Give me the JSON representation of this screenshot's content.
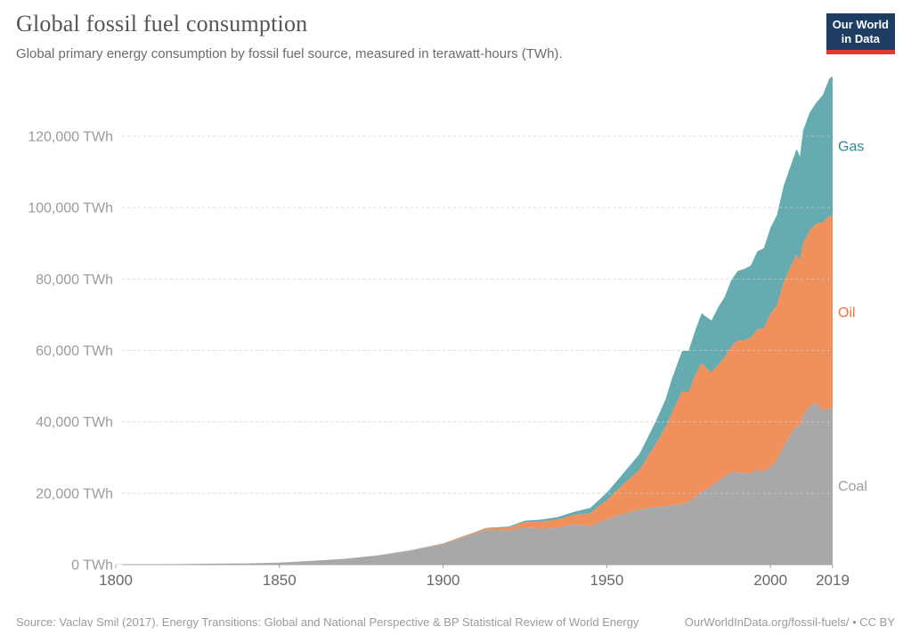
{
  "header": {
    "title": "Global fossil fuel consumption",
    "subtitle": "Global primary energy consumption by fossil fuel source, measured in terawatt-hours (TWh).",
    "logo": {
      "line1": "Our World",
      "line2": "in Data",
      "bg_color": "#1d3d63",
      "accent_color": "#dc3c32"
    }
  },
  "chart_data": {
    "type": "area",
    "stacked": true,
    "title": "Global fossil fuel consumption",
    "unit": "TWh",
    "xlim": [
      1800,
      2019
    ],
    "ylim": [
      0,
      140000
    ],
    "grid": "horizontal dashed",
    "legend_position": "right edge, inline labels",
    "x": [
      1800,
      1810,
      1820,
      1830,
      1840,
      1850,
      1860,
      1870,
      1880,
      1890,
      1900,
      1910,
      1913,
      1920,
      1925,
      1930,
      1935,
      1940,
      1945,
      1950,
      1955,
      1960,
      1965,
      1968,
      1970,
      1973,
      1975,
      1977,
      1979,
      1980,
      1982,
      1984,
      1986,
      1988,
      1990,
      1992,
      1994,
      1996,
      1998,
      2000,
      2002,
      2004,
      2006,
      2008,
      2009,
      2010,
      2012,
      2014,
      2016,
      2018,
      2019
    ],
    "series": [
      {
        "name": "Coal",
        "fill": "#a8a8a8",
        "label_color": "#9c9c9c",
        "values": [
          97,
          128,
          153,
          264,
          356,
          569,
          1061,
          1642,
          2542,
          3856,
          5728,
          8656,
          9680,
          9528,
          10500,
          10089,
          10413,
          11261,
          10800,
          12603,
          14300,
          15442,
          16140,
          16329,
          16618,
          16991,
          17560,
          18830,
          20416,
          20858,
          21928,
          23459,
          24565,
          26034,
          25905,
          25637,
          25553,
          26573,
          26020,
          27427,
          29204,
          33134,
          36070,
          39027,
          38751,
          41935,
          44341,
          45335,
          43101,
          43869,
          43849
        ]
      },
      {
        "name": "Oil",
        "fill": "#f0905c",
        "label_color": "#ee7434",
        "values": [
          0,
          0,
          0,
          0,
          0,
          2,
          6,
          11,
          33,
          89,
          181,
          397,
          470,
          889,
          1400,
          1935,
          2200,
          2653,
          3700,
          5444,
          8151,
          11096,
          17729,
          22180,
          26123,
          31500,
          30753,
          34162,
          36119,
          34553,
          31890,
          32428,
          33476,
          35054,
          36877,
          37258,
          37973,
          39284,
          40276,
          42880,
          43409,
          45908,
          47022,
          47764,
          46586,
          48118,
          49243,
          50181,
          52724,
          53878,
          53619
        ]
      },
      {
        "name": "Gas",
        "fill": "#65abb0",
        "label_color": "#2e8a8f",
        "values": [
          0,
          0,
          0,
          0,
          0,
          0,
          0,
          0,
          28,
          72,
          64,
          142,
          165,
          233,
          430,
          603,
          700,
          875,
          1400,
          2092,
          3070,
          4472,
          6304,
          7876,
          9614,
          11323,
          11613,
          12510,
          13924,
          14243,
          14573,
          16114,
          16935,
          18557,
          19484,
          19928,
          20286,
          21878,
          22361,
          24029,
          25379,
          26918,
          28158,
          29689,
          28921,
          31598,
          33085,
          33925,
          35741,
          38451,
          39292
        ]
      }
    ],
    "yticks": [
      {
        "value": 0,
        "label": "0 TWh"
      },
      {
        "value": 20000,
        "label": "20,000 TWh"
      },
      {
        "value": 40000,
        "label": "40,000 TWh"
      },
      {
        "value": 60000,
        "label": "60,000 TWh"
      },
      {
        "value": 80000,
        "label": "80,000 TWh"
      },
      {
        "value": 100000,
        "label": "100,000 TWh"
      },
      {
        "value": 120000,
        "label": "120,000 TWh"
      }
    ],
    "xticks": [
      {
        "value": 1800,
        "label": "1800"
      },
      {
        "value": 1850,
        "label": "1850"
      },
      {
        "value": 1900,
        "label": "1900"
      },
      {
        "value": 1950,
        "label": "1950"
      },
      {
        "value": 2000,
        "label": "2000"
      },
      {
        "value": 2019,
        "label": "2019"
      }
    ]
  },
  "footer": {
    "source": "Source: Vaclav Smil (2017). Energy Transitions: Global and National Perspective & BP Statistical Review of World Energy",
    "link": "OurWorldInData.org/fossil-fuels/",
    "separator": "•",
    "license": "CC BY"
  }
}
